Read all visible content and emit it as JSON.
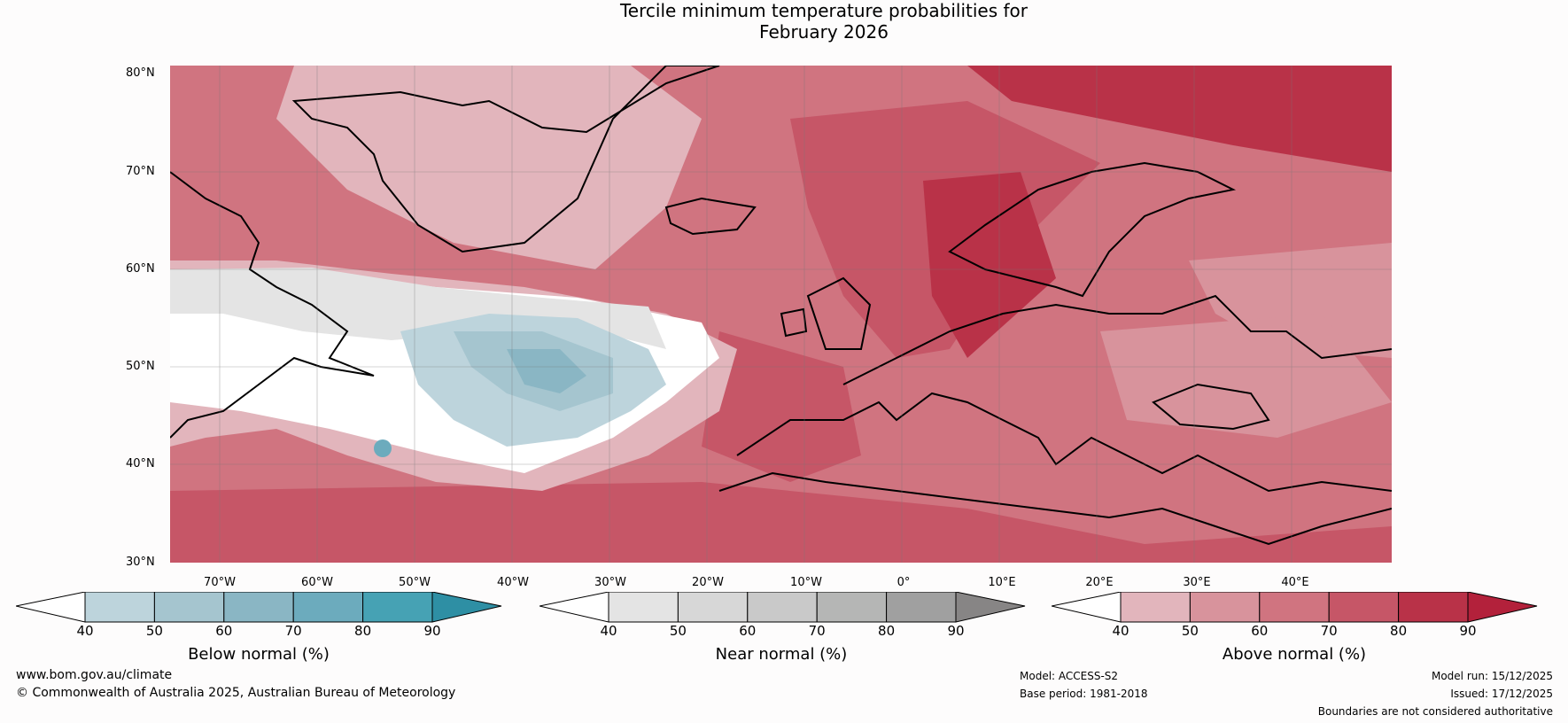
{
  "title_line1": "Tercile minimum temperature probabilities for",
  "title_line2": "February 2026",
  "lat_labels": [
    "80°N",
    "70°N",
    "60°N",
    "50°N",
    "40°N",
    "30°N"
  ],
  "lon_labels": [
    "70°W",
    "60°W",
    "50°W",
    "40°W",
    "30°W",
    "20°W",
    "10°W",
    "0°",
    "10°E",
    "20°E",
    "30°E",
    "40°E"
  ],
  "colorbars": [
    {
      "title": "Below normal (%)",
      "ticks": [
        "40",
        "50",
        "60",
        "70",
        "80",
        "90"
      ],
      "colors": [
        "#bdd4dc",
        "#a5c5cf",
        "#8ab6c4",
        "#6cabbd",
        "#46a2b4",
        "#2e8fa4"
      ]
    },
    {
      "title": "Near normal (%)",
      "ticks": [
        "40",
        "50",
        "60",
        "70",
        "80",
        "90"
      ],
      "colors": [
        "#e4e4e4",
        "#d7d7d7",
        "#c9c9c9",
        "#b5b6b5",
        "#a0a0a0",
        "#878585"
      ]
    },
    {
      "title": "Above normal (%)",
      "ticks": [
        "40",
        "50",
        "60",
        "70",
        "80",
        "90"
      ],
      "colors": [
        "#e2b5bc",
        "#d8939c",
        "#d07480",
        "#c65667",
        "#b93248",
        "#b3213b"
      ]
    }
  ],
  "footer": {
    "website": "www.bom.gov.au/climate",
    "copyright": "© Commonwealth of Australia 2025, Australian Bureau of Meteorology",
    "model": "Model: ACCESS-S2",
    "base_period": "Base period: 1981-2018",
    "model_run": "Model run: 15/12/2025",
    "issued": "Issued: 17/12/2025",
    "disclaimer": "Boundaries are not considered authoritative"
  }
}
